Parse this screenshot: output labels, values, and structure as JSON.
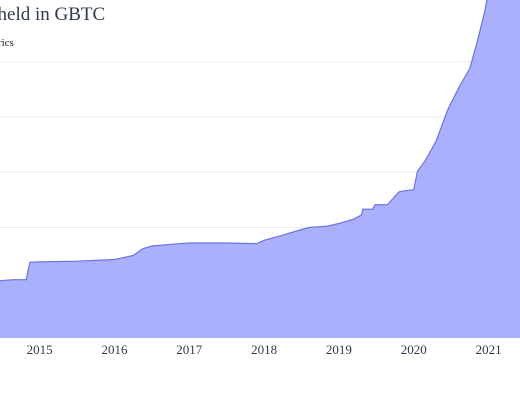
{
  "title": "ly held in GBTC",
  "subtitle": "etrics",
  "colors": {
    "area_fill": "#aab0fb",
    "area_line": "#6b73e0",
    "grid": "#ececec",
    "axis_text": "#2f3a4d"
  },
  "chart_data": {
    "type": "area",
    "grid": true,
    "x_axis": {
      "tick_labels": [
        "2015",
        "2016",
        "2017",
        "2018",
        "2019",
        "2020",
        "2021"
      ],
      "range": [
        2014.47,
        2021.42
      ]
    },
    "y_axis": {
      "range": [
        0,
        100
      ],
      "gridlines": [
        0,
        16.4,
        32.8,
        49.2,
        65.6,
        82
      ]
    },
    "series": [
      {
        "x": [
          2014.47,
          2014.65,
          2014.82,
          2014.87,
          2015.0,
          2015.5,
          2016.0,
          2016.25,
          2016.38,
          2016.5,
          2016.75,
          2017.0,
          2017.5,
          2017.9,
          2018.0,
          2018.25,
          2018.5,
          2018.6,
          2018.85,
          2019.0,
          2019.2,
          2019.3,
          2019.32,
          2019.45,
          2019.48,
          2019.65,
          2019.8,
          2019.82,
          2020.0,
          2020.05,
          2020.15,
          2020.3,
          2020.45,
          2020.55,
          2020.62,
          2020.75,
          2020.85,
          2020.95,
          2021.0,
          2021.05,
          2021.08,
          2021.2,
          2021.42
        ],
        "y": [
          17,
          17.3,
          17.3,
          22.5,
          22.6,
          22.8,
          23.3,
          24.5,
          26.5,
          27.3,
          27.8,
          28.2,
          28.2,
          28.0,
          29.0,
          30.5,
          32.2,
          32.8,
          33.2,
          34.0,
          35.3,
          36.5,
          38.2,
          38.2,
          39.5,
          39.6,
          43.3,
          43.5,
          44,
          49.5,
          52.5,
          58.5,
          67.5,
          72,
          75,
          80,
          88,
          97,
          103,
          108,
          108.5,
          108.5,
          108
        ]
      }
    ]
  }
}
